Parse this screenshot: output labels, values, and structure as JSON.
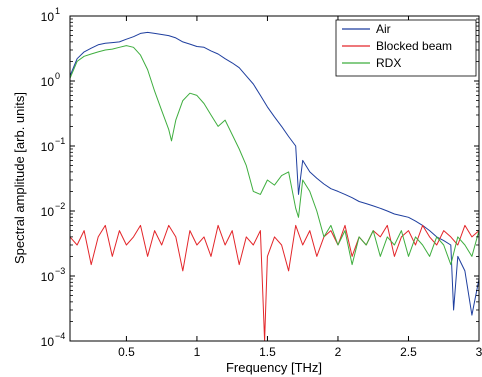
{
  "chart_data": {
    "type": "line",
    "xlabel": "Frequency [THz]",
    "ylabel": "Spectral amplitude [arb. units]",
    "xlim": [
      0.1,
      3.0
    ],
    "ylim_log10": [
      -4,
      1
    ],
    "yscale": "log",
    "grid": false,
    "legend_position": "top-right",
    "x_ticks": [
      {
        "value": 0.5,
        "label": "0.5"
      },
      {
        "value": 1.0,
        "label": "1"
      },
      {
        "value": 1.5,
        "label": "1.5"
      },
      {
        "value": 2.0,
        "label": "2"
      },
      {
        "value": 2.5,
        "label": "2.5"
      },
      {
        "value": 3.0,
        "label": "3"
      }
    ],
    "y_ticks": [
      {
        "exp": -4,
        "base": "10",
        "sup": "−4"
      },
      {
        "exp": -3,
        "base": "10",
        "sup": "−3"
      },
      {
        "exp": -2,
        "base": "10",
        "sup": "−2"
      },
      {
        "exp": -1,
        "base": "10",
        "sup": "−1"
      },
      {
        "exp": 0,
        "base": "10",
        "sup": "0"
      },
      {
        "exp": 1,
        "base": "10",
        "sup": "1"
      }
    ],
    "series": [
      {
        "name": "Air",
        "color": "#1f3f9f",
        "x": [
          0.1,
          0.15,
          0.2,
          0.25,
          0.3,
          0.35,
          0.4,
          0.45,
          0.5,
          0.55,
          0.6,
          0.65,
          0.7,
          0.75,
          0.8,
          0.85,
          0.9,
          0.95,
          1.0,
          1.05,
          1.1,
          1.15,
          1.2,
          1.25,
          1.3,
          1.35,
          1.4,
          1.45,
          1.5,
          1.55,
          1.6,
          1.65,
          1.7,
          1.72,
          1.75,
          1.8,
          1.85,
          1.9,
          1.95,
          2.0,
          2.05,
          2.1,
          2.15,
          2.2,
          2.25,
          2.3,
          2.35,
          2.4,
          2.45,
          2.5,
          2.55,
          2.6,
          2.65,
          2.7,
          2.75,
          2.8,
          2.82,
          2.85,
          2.9,
          2.95,
          3.0
        ],
        "y": [
          1.2,
          2.2,
          2.8,
          3.2,
          3.6,
          3.8,
          3.9,
          4.0,
          4.4,
          4.8,
          5.4,
          5.6,
          5.4,
          5.2,
          5.0,
          4.6,
          4.0,
          3.7,
          3.4,
          3.3,
          2.9,
          2.6,
          2.2,
          1.9,
          1.6,
          1.2,
          0.9,
          0.6,
          0.4,
          0.28,
          0.2,
          0.14,
          0.1,
          0.018,
          0.06,
          0.04,
          0.032,
          0.026,
          0.022,
          0.02,
          0.018,
          0.016,
          0.014,
          0.013,
          0.012,
          0.011,
          0.01,
          0.009,
          0.0085,
          0.008,
          0.007,
          0.006,
          0.005,
          0.004,
          0.0035,
          0.003,
          0.0003,
          0.002,
          0.0012,
          0.00025,
          0.0009
        ]
      },
      {
        "name": "Blocked beam",
        "color": "#e3262a",
        "x": [
          0.1,
          0.15,
          0.2,
          0.25,
          0.3,
          0.35,
          0.4,
          0.45,
          0.5,
          0.55,
          0.6,
          0.65,
          0.7,
          0.75,
          0.8,
          0.85,
          0.9,
          0.95,
          1.0,
          1.05,
          1.1,
          1.15,
          1.2,
          1.25,
          1.3,
          1.35,
          1.4,
          1.45,
          1.48,
          1.5,
          1.55,
          1.6,
          1.65,
          1.7,
          1.75,
          1.8,
          1.85,
          1.9,
          1.95,
          2.0,
          2.05,
          2.1,
          2.15,
          2.2,
          2.25,
          2.3,
          2.35,
          2.4,
          2.45,
          2.5,
          2.55,
          2.6,
          2.65,
          2.7,
          2.75,
          2.8,
          2.85,
          2.9,
          2.95,
          3.0
        ],
        "y": [
          0.004,
          0.003,
          0.005,
          0.0015,
          0.004,
          0.006,
          0.002,
          0.005,
          0.003,
          0.004,
          0.006,
          0.002,
          0.005,
          0.003,
          0.006,
          0.004,
          0.0012,
          0.005,
          0.003,
          0.004,
          0.002,
          0.006,
          0.003,
          0.005,
          0.0015,
          0.004,
          0.003,
          0.005,
          0.0001,
          0.002,
          0.004,
          0.003,
          0.0012,
          0.006,
          0.003,
          0.005,
          0.002,
          0.004,
          0.005,
          0.003,
          0.006,
          0.002,
          0.004,
          0.003,
          0.005,
          0.004,
          0.006,
          0.002,
          0.004,
          0.005,
          0.003,
          0.006,
          0.004,
          0.003,
          0.005,
          0.004,
          0.003,
          0.006,
          0.004,
          0.005
        ]
      },
      {
        "name": "RDX",
        "color": "#3fae3f",
        "x": [
          0.1,
          0.15,
          0.2,
          0.25,
          0.3,
          0.35,
          0.4,
          0.45,
          0.5,
          0.55,
          0.6,
          0.65,
          0.7,
          0.75,
          0.8,
          0.82,
          0.85,
          0.9,
          0.95,
          1.0,
          1.05,
          1.1,
          1.15,
          1.2,
          1.25,
          1.3,
          1.35,
          1.4,
          1.45,
          1.5,
          1.55,
          1.6,
          1.65,
          1.7,
          1.72,
          1.75,
          1.8,
          1.85,
          1.9,
          1.95,
          2.0,
          2.05,
          2.1,
          2.15,
          2.2,
          2.25,
          2.3,
          2.35,
          2.4,
          2.45,
          2.5,
          2.55,
          2.6,
          2.65,
          2.7,
          2.75,
          2.8,
          2.85,
          2.9,
          2.95,
          3.0
        ],
        "y": [
          1.1,
          2.0,
          2.4,
          2.6,
          2.8,
          3.0,
          3.1,
          3.3,
          3.5,
          3.3,
          2.5,
          1.5,
          0.7,
          0.35,
          0.18,
          0.12,
          0.25,
          0.5,
          0.65,
          0.6,
          0.45,
          0.3,
          0.2,
          0.25,
          0.15,
          0.09,
          0.05,
          0.02,
          0.018,
          0.03,
          0.025,
          0.035,
          0.04,
          0.011,
          0.008,
          0.03,
          0.02,
          0.01,
          0.004,
          0.006,
          0.003,
          0.005,
          0.0015,
          0.004,
          0.003,
          0.005,
          0.002,
          0.004,
          0.003,
          0.005,
          0.002,
          0.004,
          0.003,
          0.002,
          0.004,
          0.003,
          0.0015,
          0.004,
          0.003,
          0.002,
          0.005
        ]
      }
    ]
  }
}
